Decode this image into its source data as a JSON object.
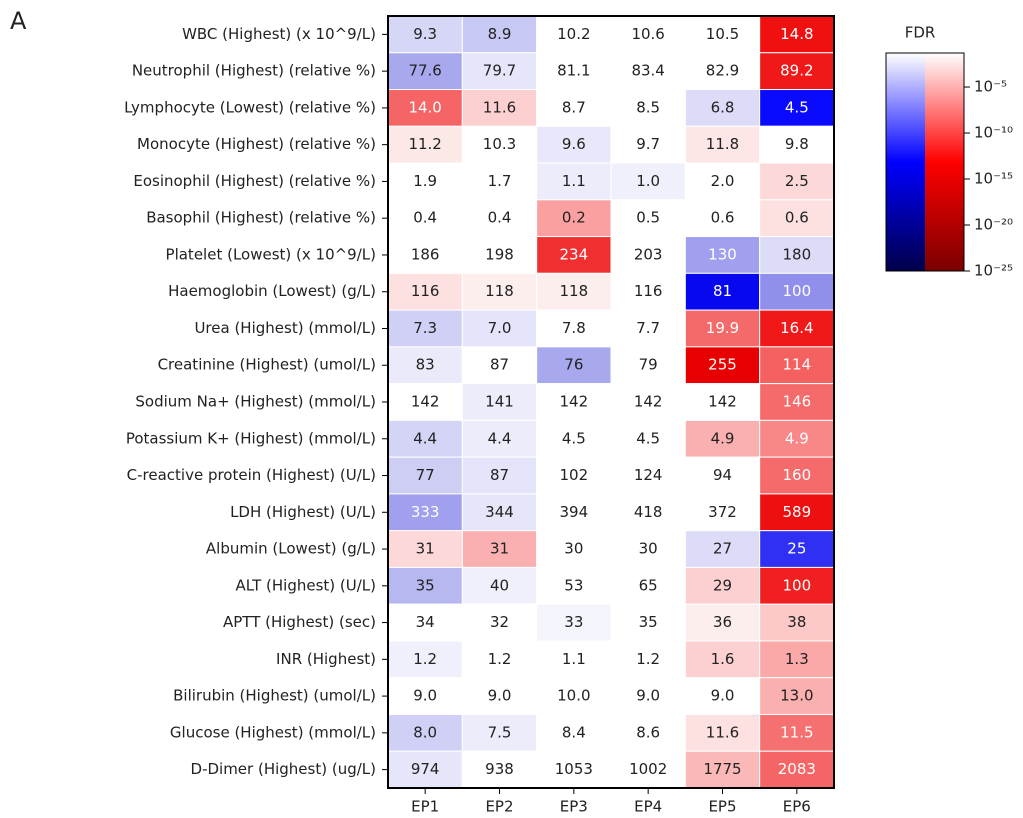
{
  "chart_data": {
    "type": "heatmap",
    "panel_label": "A",
    "colorbar_title": "FDR",
    "categories": [
      "EP1",
      "EP2",
      "EP3",
      "EP4",
      "EP5",
      "EP6"
    ],
    "rows": [
      "WBC (Highest) (x 10^9/L)",
      "Neutrophil (Highest) (relative %)",
      "Lymphocyte (Lowest) (relative %)",
      "Monocyte (Highest) (relative %)",
      "Eosinophil (Highest) (relative %)",
      "Basophil (Highest) (relative %)",
      "Platelet (Lowest) (x 10^9/L)",
      "Haemoglobin (Lowest) (g/L)",
      "Urea (Highest) (mmol/L)",
      "Creatinine (Highest) (umol/L)",
      "Sodium Na+ (Highest) (mmol/L)",
      "Potassium K+ (Highest) (mmol/L)",
      "C-reactive protein (Highest) (U/L)",
      "LDH (Highest) (U/L)",
      "Albumin (Lowest) (g/L)",
      "ALT (Highest) (U/L)",
      "APTT (Highest) (sec)",
      "INR (Highest)",
      "Bilirubin (Highest) (umol/L)",
      "Glucose (Highest) (mmol/L)",
      "D-Dimer (Highest) (ug/L)"
    ],
    "values": [
      [
        9.3,
        8.9,
        10.2,
        10.6,
        10.5,
        14.8
      ],
      [
        77.6,
        79.7,
        81.1,
        83.4,
        82.9,
        89.2
      ],
      [
        14.0,
        11.6,
        8.7,
        8.5,
        6.8,
        4.5
      ],
      [
        11.2,
        10.3,
        9.6,
        9.7,
        11.8,
        9.8
      ],
      [
        1.9,
        1.7,
        1.1,
        1.0,
        2.0,
        2.5
      ],
      [
        0.4,
        0.4,
        0.2,
        0.5,
        0.6,
        0.6
      ],
      [
        186,
        198,
        234,
        203,
        130,
        180
      ],
      [
        116,
        118,
        118,
        116,
        81,
        100
      ],
      [
        7.3,
        7.0,
        7.8,
        7.7,
        19.9,
        16.4
      ],
      [
        83,
        87,
        76,
        79,
        255,
        114
      ],
      [
        142,
        141,
        142,
        142,
        142,
        146
      ],
      [
        4.4,
        4.4,
        4.5,
        4.5,
        4.9,
        4.9
      ],
      [
        77,
        87,
        102,
        124,
        94,
        160
      ],
      [
        333,
        344,
        394,
        418,
        372,
        589
      ],
      [
        31,
        31,
        30,
        30,
        27,
        25
      ],
      [
        35,
        40,
        53,
        65,
        29,
        100
      ],
      [
        34,
        32,
        33,
        35,
        36,
        38
      ],
      [
        1.2,
        1.2,
        1.1,
        1.2,
        1.6,
        1.3
      ],
      [
        9.0,
        9.0,
        10.0,
        9.0,
        9.0,
        13.0
      ],
      [
        8.0,
        7.5,
        8.4,
        8.6,
        11.6,
        11.5
      ],
      [
        974,
        938,
        1053,
        1002,
        1775,
        2083
      ]
    ],
    "value_labels": [
      [
        "9.3",
        "8.9",
        "10.2",
        "10.6",
        "10.5",
        "14.8"
      ],
      [
        "77.6",
        "79.7",
        "81.1",
        "83.4",
        "82.9",
        "89.2"
      ],
      [
        "14.0",
        "11.6",
        "8.7",
        "8.5",
        "6.8",
        "4.5"
      ],
      [
        "11.2",
        "10.3",
        "9.6",
        "9.7",
        "11.8",
        "9.8"
      ],
      [
        "1.9",
        "1.7",
        "1.1",
        "1.0",
        "2.0",
        "2.5"
      ],
      [
        "0.4",
        "0.4",
        "0.2",
        "0.5",
        "0.6",
        "0.6"
      ],
      [
        "186",
        "198",
        "234",
        "203",
        "130",
        "180"
      ],
      [
        "116",
        "118",
        "118",
        "116",
        "81",
        "100"
      ],
      [
        "7.3",
        "7.0",
        "7.8",
        "7.7",
        "19.9",
        "16.4"
      ],
      [
        "83",
        "87",
        "76",
        "79",
        "255",
        "114"
      ],
      [
        "142",
        "141",
        "142",
        "142",
        "142",
        "146"
      ],
      [
        "4.4",
        "4.4",
        "4.5",
        "4.5",
        "4.9",
        "4.9"
      ],
      [
        "77",
        "87",
        "102",
        "124",
        "94",
        "160"
      ],
      [
        "333",
        "344",
        "394",
        "418",
        "372",
        "589"
      ],
      [
        "31",
        "31",
        "30",
        "30",
        "27",
        "25"
      ],
      [
        "35",
        "40",
        "53",
        "65",
        "29",
        "100"
      ],
      [
        "34",
        "32",
        "33",
        "35",
        "36",
        "38"
      ],
      [
        "1.2",
        "1.2",
        "1.1",
        "1.2",
        "1.6",
        "1.3"
      ],
      [
        "9.0",
        "9.0",
        "10.0",
        "9.0",
        "9.0",
        "13.0"
      ],
      [
        "8.0",
        "7.5",
        "8.4",
        "8.6",
        "11.6",
        "11.5"
      ],
      [
        "974",
        "938",
        "1053",
        "1002",
        "1775",
        "2083"
      ]
    ],
    "colors": [
      [
        "#d6d6f6",
        "#c8c8f4",
        "#ffffff",
        "#ffffff",
        "#ffffff",
        "#f01010"
      ],
      [
        "#a8a8ee",
        "#e6e6fa",
        "#ffffff",
        "#ffffff",
        "#ffffff",
        "#f01818"
      ],
      [
        "#f56565",
        "#fcd0d0",
        "#ffffff",
        "#ffffff",
        "#dcdcf8",
        "#0a0aff"
      ],
      [
        "#fde8e8",
        "#ffffff",
        "#e8e8fa",
        "#ffffff",
        "#fde6e6",
        "#ffffff"
      ],
      [
        "#ffffff",
        "#ffffff",
        "#ececfb",
        "#f0f0fc",
        "#ffffff",
        "#fdd8d8"
      ],
      [
        "#ffffff",
        "#ffffff",
        "#faa0a0",
        "#ffffff",
        "#ffffff",
        "#fde0e0"
      ],
      [
        "#ffffff",
        "#ffffff",
        "#f03030",
        "#ffffff",
        "#a0a0ee",
        "#dcdcf8"
      ],
      [
        "#fde0e0",
        "#fdeeee",
        "#fdeeee",
        "#ffffff",
        "#0808f0",
        "#9090ec"
      ],
      [
        "#d0d0f6",
        "#e4e4fa",
        "#ffffff",
        "#ffffff",
        "#f46a6a",
        "#f01818"
      ],
      [
        "#eaeafb",
        "#ffffff",
        "#a8a8ee",
        "#ffffff",
        "#e80000",
        "#f56060"
      ],
      [
        "#ffffff",
        "#ececfb",
        "#ffffff",
        "#ffffff",
        "#ffffff",
        "#f56a6a"
      ],
      [
        "#d4d4f6",
        "#ececfb",
        "#ffffff",
        "#ffffff",
        "#fab0b0",
        "#f88888"
      ],
      [
        "#ceceF5",
        "#e4e4fa",
        "#ffffff",
        "#ffffff",
        "#ffffff",
        "#f56a6a"
      ],
      [
        "#a0a0ee",
        "#e6e6fa",
        "#ffffff",
        "#ffffff",
        "#ffffff",
        "#ee1010"
      ],
      [
        "#fdd8d8",
        "#fab0b0",
        "#ffffff",
        "#ffffff",
        "#dcdcf8",
        "#3030f5"
      ],
      [
        "#b8b8f0",
        "#f0f0fc",
        "#ffffff",
        "#ffffff",
        "#fcd0d0",
        "#f02020"
      ],
      [
        "#ffffff",
        "#ffffff",
        "#f4f4fd",
        "#ffffff",
        "#fdeeee",
        "#fcc8c8"
      ],
      [
        "#f0f0fc",
        "#ffffff",
        "#ffffff",
        "#ffffff",
        "#fcd0d0",
        "#faa8a8"
      ],
      [
        "#ffffff",
        "#ffffff",
        "#ffffff",
        "#ffffff",
        "#ffffff",
        "#fbb0b0"
      ],
      [
        "#d0d0f6",
        "#ececfb",
        "#ffffff",
        "#ffffff",
        "#fde0e0",
        "#f57070"
      ],
      [
        "#e6e6fa",
        "#ffffff",
        "#ffffff",
        "#ffffff",
        "#fbb8b8",
        "#f56565"
      ]
    ],
    "clim": [
      1e-25,
      0.05
    ],
    "log_scale": true,
    "cticks": [
      {
        "value": 1e-05,
        "label": "10⁻⁵"
      },
      {
        "value": 1e-10,
        "label": "10⁻¹⁰"
      },
      {
        "value": 1e-15,
        "label": "10⁻¹⁵"
      },
      {
        "value": 1e-20,
        "label": "10⁻²⁰"
      },
      {
        "value": 1e-25,
        "label": "10⁻²⁵"
      }
    ]
  }
}
